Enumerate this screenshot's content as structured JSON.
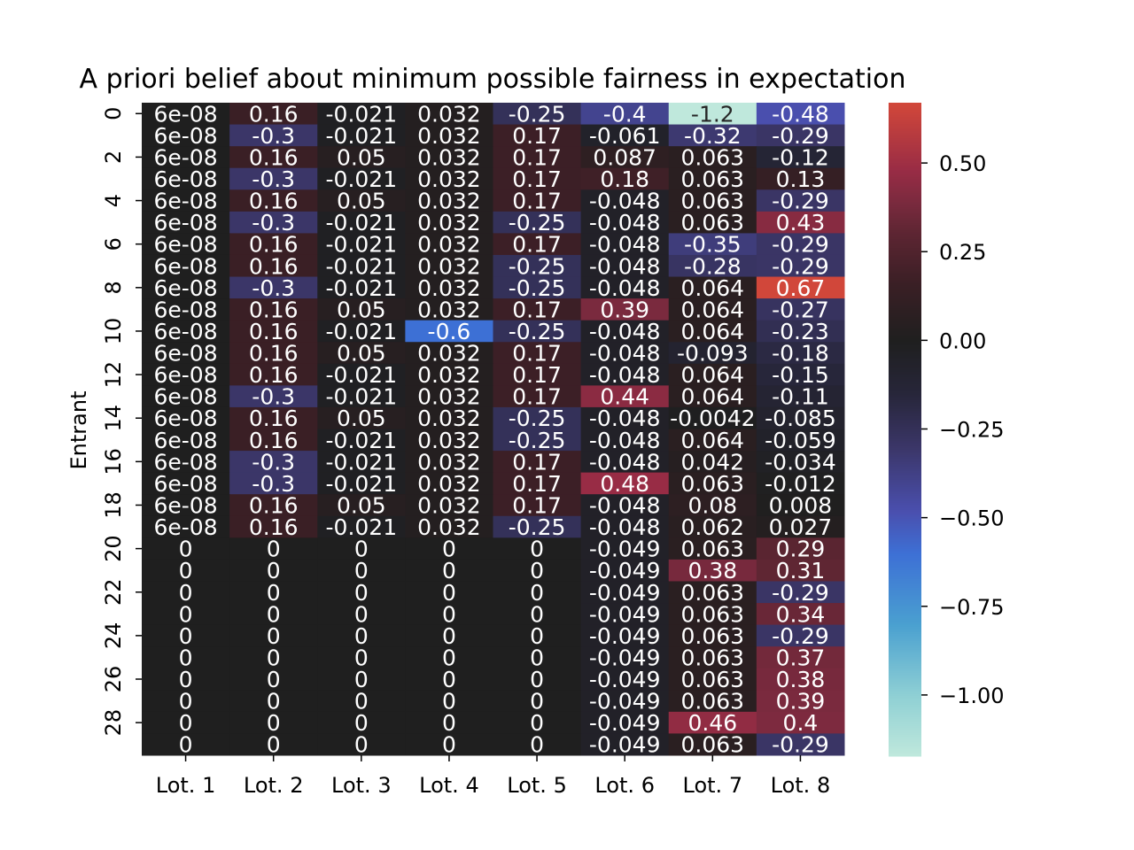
{
  "chart_data": {
    "type": "heatmap",
    "title": "A priori belief about minimum possible fairness in expectation",
    "xlabel": "",
    "ylabel": "Entrant",
    "columns": [
      "Lot. 1",
      "Lot. 2",
      "Lot. 3",
      "Lot. 4",
      "Lot. 5",
      "Lot. 6",
      "Lot. 7",
      "Lot. 8"
    ],
    "row_ticks": [
      "0",
      "2",
      "4",
      "6",
      "8",
      "10",
      "12",
      "14",
      "16",
      "18",
      "20",
      "22",
      "24",
      "26",
      "28"
    ],
    "colorbar": {
      "vmin": -1.17,
      "vmax": 0.67,
      "center": 0,
      "ticks": [
        "0.50",
        "0.25",
        "0.00",
        "−0.25",
        "−0.50",
        "−0.75",
        "−1.00"
      ],
      "tick_values": [
        0.5,
        0.25,
        0,
        -0.25,
        -0.5,
        -0.75,
        -1.0
      ]
    },
    "labels": [
      [
        "6e-08",
        "0.16",
        "-0.021",
        "0.032",
        "-0.25",
        "-0.4",
        "-1.2",
        "-0.48"
      ],
      [
        "6e-08",
        "-0.3",
        "-0.021",
        "0.032",
        "0.17",
        "-0.061",
        "-0.32",
        "-0.29"
      ],
      [
        "6e-08",
        "0.16",
        "0.05",
        "0.032",
        "0.17",
        "0.087",
        "0.063",
        "-0.12"
      ],
      [
        "6e-08",
        "-0.3",
        "-0.021",
        "0.032",
        "0.17",
        "0.18",
        "0.063",
        "0.13"
      ],
      [
        "6e-08",
        "0.16",
        "0.05",
        "0.032",
        "0.17",
        "-0.048",
        "0.063",
        "-0.29"
      ],
      [
        "6e-08",
        "-0.3",
        "-0.021",
        "0.032",
        "-0.25",
        "-0.048",
        "0.063",
        "0.43"
      ],
      [
        "6e-08",
        "0.16",
        "-0.021",
        "0.032",
        "0.17",
        "-0.048",
        "-0.35",
        "-0.29"
      ],
      [
        "6e-08",
        "0.16",
        "-0.021",
        "0.032",
        "-0.25",
        "-0.048",
        "-0.28",
        "-0.29"
      ],
      [
        "6e-08",
        "-0.3",
        "-0.021",
        "0.032",
        "-0.25",
        "-0.048",
        "0.064",
        "0.67"
      ],
      [
        "6e-08",
        "0.16",
        "0.05",
        "0.032",
        "0.17",
        "0.39",
        "0.064",
        "-0.27"
      ],
      [
        "6e-08",
        "0.16",
        "-0.021",
        "-0.6",
        "-0.25",
        "-0.048",
        "0.064",
        "-0.23"
      ],
      [
        "6e-08",
        "0.16",
        "0.05",
        "0.032",
        "0.17",
        "-0.048",
        "-0.093",
        "-0.18"
      ],
      [
        "6e-08",
        "0.16",
        "-0.021",
        "0.032",
        "0.17",
        "-0.048",
        "0.064",
        "-0.15"
      ],
      [
        "6e-08",
        "-0.3",
        "-0.021",
        "0.032",
        "0.17",
        "0.44",
        "0.064",
        "-0.11"
      ],
      [
        "6e-08",
        "0.16",
        "0.05",
        "0.032",
        "-0.25",
        "-0.048",
        "-0.0042",
        "-0.085"
      ],
      [
        "6e-08",
        "0.16",
        "-0.021",
        "0.032",
        "-0.25",
        "-0.048",
        "0.064",
        "-0.059"
      ],
      [
        "6e-08",
        "-0.3",
        "-0.021",
        "0.032",
        "0.17",
        "-0.048",
        "0.042",
        "-0.034"
      ],
      [
        "6e-08",
        "-0.3",
        "-0.021",
        "0.032",
        "0.17",
        "0.48",
        "0.063",
        "-0.012"
      ],
      [
        "6e-08",
        "0.16",
        "0.05",
        "0.032",
        "0.17",
        "-0.048",
        "0.08",
        "0.008"
      ],
      [
        "6e-08",
        "0.16",
        "-0.021",
        "0.032",
        "-0.25",
        "-0.048",
        "0.062",
        "0.027"
      ],
      [
        "0",
        "0",
        "0",
        "0",
        "0",
        "-0.049",
        "0.063",
        "0.29"
      ],
      [
        "0",
        "0",
        "0",
        "0",
        "0",
        "-0.049",
        "0.38",
        "0.31"
      ],
      [
        "0",
        "0",
        "0",
        "0",
        "0",
        "-0.049",
        "0.063",
        "-0.29"
      ],
      [
        "0",
        "0",
        "0",
        "0",
        "0",
        "-0.049",
        "0.063",
        "0.34"
      ],
      [
        "0",
        "0",
        "0",
        "0",
        "0",
        "-0.049",
        "0.063",
        "-0.29"
      ],
      [
        "0",
        "0",
        "0",
        "0",
        "0",
        "-0.049",
        "0.063",
        "0.37"
      ],
      [
        "0",
        "0",
        "0",
        "0",
        "0",
        "-0.049",
        "0.063",
        "0.38"
      ],
      [
        "0",
        "0",
        "0",
        "0",
        "0",
        "-0.049",
        "0.063",
        "0.39"
      ],
      [
        "0",
        "0",
        "0",
        "0",
        "0",
        "-0.049",
        "0.46",
        "0.4"
      ],
      [
        "0",
        "0",
        "0",
        "0",
        "0",
        "-0.049",
        "0.063",
        "-0.29"
      ]
    ]
  }
}
